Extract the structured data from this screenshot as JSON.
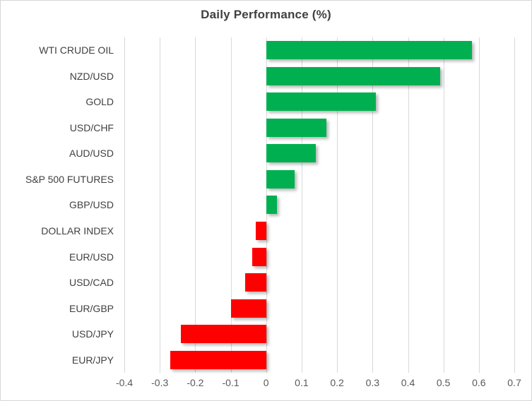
{
  "title": "Daily Performance (%)",
  "colors": {
    "positive_bar": "#00B050",
    "negative_bar": "#FF0000",
    "gridline": "#D9D9D9",
    "title_text": "#404040",
    "category_text": "#404040",
    "tick_text": "#595959",
    "chart_border": "#D7D7D7",
    "background": "#FFFFFF"
  },
  "chart_data": {
    "type": "bar",
    "orientation": "horizontal",
    "title": "Daily Performance (%)",
    "xlabel": "",
    "ylabel": "",
    "categories": [
      "WTI CRUDE OIL",
      "NZD/USD",
      "GOLD",
      "USD/CHF",
      "AUD/USD",
      "S&P 500 FUTURES",
      "GBP/USD",
      "DOLLAR INDEX",
      "EUR/USD",
      "USD/CAD",
      "EUR/GBP",
      "USD/JPY",
      "EUR/JPY"
    ],
    "values": [
      0.58,
      0.49,
      0.31,
      0.17,
      0.14,
      0.08,
      0.03,
      -0.03,
      -0.04,
      -0.06,
      -0.1,
      -0.24,
      -0.27
    ],
    "xlim": [
      -0.4,
      0.7
    ],
    "xticks": [
      -0.4,
      -0.3,
      -0.2,
      -0.1,
      0,
      0.1,
      0.2,
      0.3,
      0.4,
      0.5,
      0.6,
      0.7
    ],
    "xtick_labels": [
      "-0.4",
      "-0.3",
      "-0.2",
      "-0.1",
      "0",
      "0.1",
      "0.2",
      "0.3",
      "0.4",
      "0.5",
      "0.6",
      "0.7"
    ],
    "grid": true,
    "legend": false
  }
}
